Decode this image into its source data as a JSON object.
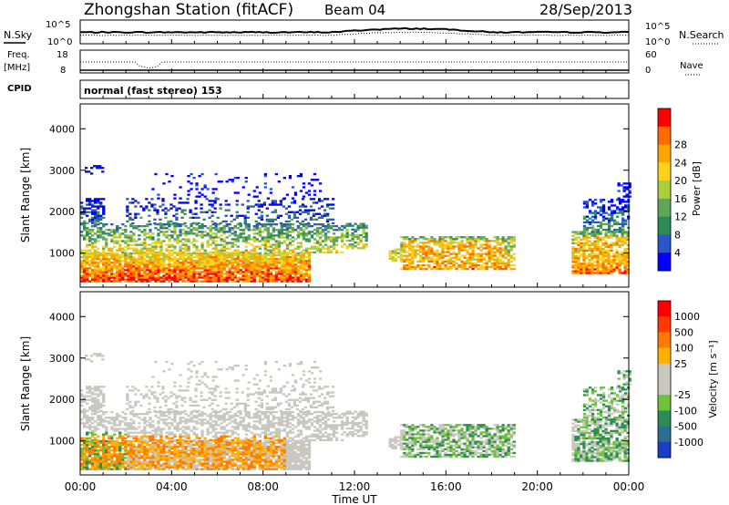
{
  "header": {
    "station": "Zhongshan Station (fitACF)",
    "beam": "Beam 04",
    "date": "28/Sep/2013"
  },
  "top_panels": {
    "nsky_label": "N.Sky",
    "nsearch_label": "N.Search",
    "noise_ticks": [
      "10^5",
      "10^0"
    ],
    "freq_label_1": "Freq.",
    "freq_label_2": "[MHz]",
    "freq_ticks": [
      "18",
      "8"
    ],
    "nave_label": "Nave",
    "nave_ticks": [
      "60",
      "0"
    ],
    "cpid_label": "CPID",
    "cpid_text": "normal (fast stereo) 153"
  },
  "chart_data": [
    {
      "type": "heatmap",
      "name": "power-panel",
      "ylabel": "Slant Range [km]",
      "xlabel": "Time UT",
      "x_ticks": [
        "00:00",
        "04:00",
        "08:00",
        "12:00",
        "16:00",
        "20:00",
        "00:00"
      ],
      "xlim_hours": [
        0,
        24
      ],
      "y_ticks": [
        1000,
        2000,
        3000,
        4000
      ],
      "ylim": [
        180,
        4600
      ],
      "colorbar": {
        "label": "Power [dB]",
        "ticks": [
          "4",
          "8",
          "12",
          "16",
          "20",
          "24",
          "28"
        ],
        "colors": [
          "#0000ff",
          "#2a56c8",
          "#2e8b57",
          "#5fa65a",
          "#aacf3a",
          "#ffd21a",
          "#ffa500",
          "#ff6a00",
          "#ff0000"
        ]
      }
    },
    {
      "type": "heatmap",
      "name": "velocity-panel",
      "ylabel": "Slant Range [km]",
      "xlabel": "Time UT",
      "x_ticks": [
        "00:00",
        "04:00",
        "08:00",
        "12:00",
        "16:00",
        "20:00",
        "00:00"
      ],
      "xlim_hours": [
        0,
        24
      ],
      "y_ticks": [
        1000,
        2000,
        3000,
        4000
      ],
      "ylim": [
        180,
        4600
      ],
      "colorbar": {
        "label": "Velocity [m s⁻¹]",
        "ticks": [
          "1000",
          "500",
          "100",
          "25",
          "-25",
          "-100",
          "-500",
          "-1000"
        ],
        "colors": [
          "#1a3ec8",
          "#2e6f8f",
          "#2e8b57",
          "#6fc23a",
          "#c8c8c0",
          "#c8c8c0",
          "#ffb000",
          "#ff7a00",
          "#ff3a00",
          "#ff0000"
        ]
      }
    }
  ]
}
